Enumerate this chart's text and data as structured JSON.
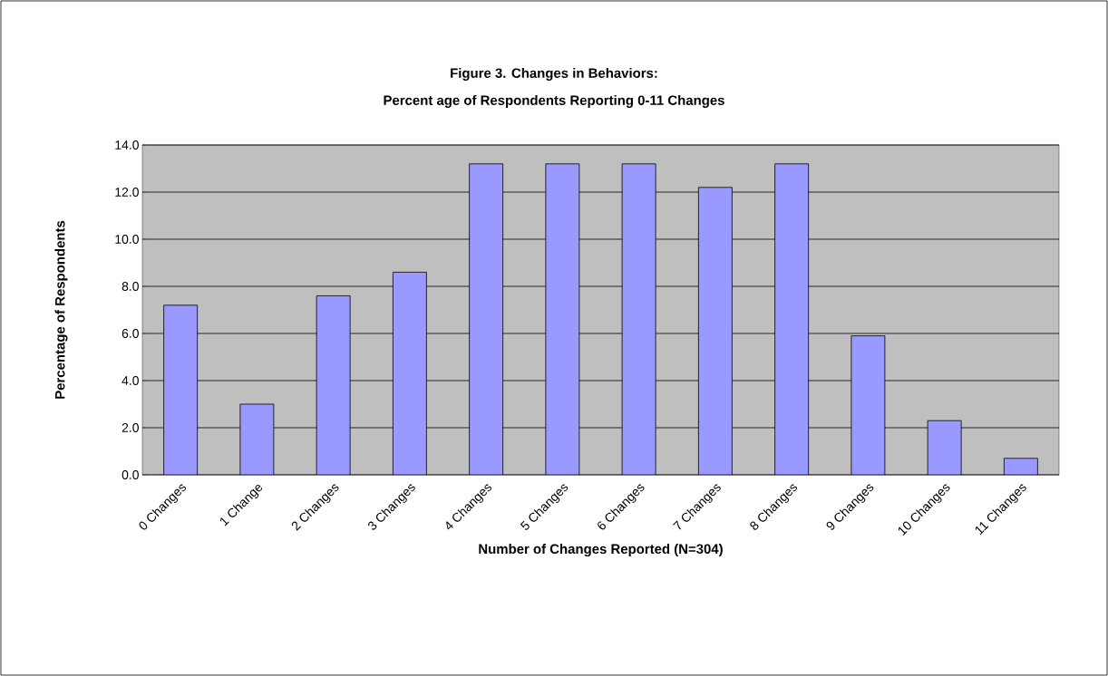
{
  "chart_data": {
    "type": "bar",
    "title": "Figure 3.  Changes in Behaviors:",
    "subtitle": "Percent age of Respondents Reporting 0-11 Changes",
    "xlabel": "Number of Changes Reported (N=304)",
    "ylabel": "Percentage of Respondents",
    "categories": [
      "0 Changes",
      "1 Change",
      "2 Changes",
      "3 Changes",
      "4 Changes",
      "5 Changes",
      "6 Changes",
      "7 Changes",
      "8 Changes",
      "9 Changes",
      "10 Changes",
      "11 Changes"
    ],
    "values": [
      7.2,
      3.0,
      7.6,
      8.6,
      13.2,
      13.2,
      13.2,
      12.2,
      13.2,
      5.9,
      2.3,
      0.7
    ],
    "color": "#9999ff",
    "ylim": [
      0,
      14
    ],
    "yticks": [
      {
        "value": 0,
        "label": "0.0"
      },
      {
        "value": 2,
        "label": "2.0"
      },
      {
        "value": 4,
        "label": "4.0"
      },
      {
        "value": 6,
        "label": "6.0"
      },
      {
        "value": 8,
        "label": "8.0"
      },
      {
        "value": 10,
        "label": "10.0"
      },
      {
        "value": 12,
        "label": "12.0"
      },
      {
        "value": 14,
        "label": "14.0"
      }
    ],
    "grid": "y"
  }
}
